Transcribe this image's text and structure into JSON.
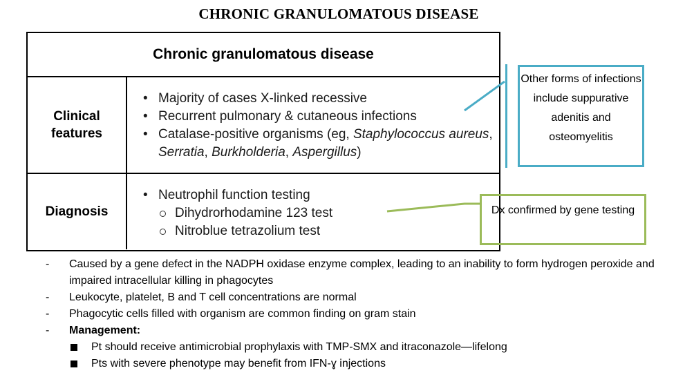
{
  "page_title": "CHRONIC GRANULOMATOUS DISEASE",
  "table": {
    "header": "Chronic granulomatous disease",
    "clinical": {
      "label_line1": "Clinical",
      "label_line2": "features",
      "items": [
        "Majority of cases X-linked recessive",
        "Recurrent pulmonary & cutaneous infections"
      ],
      "catalase_prefix": "Catalase-positive organisms (eg, ",
      "catalase_organisms": "Staphylococcus aureus",
      "catalase_sep1": ", ",
      "org2": "Serratia",
      "org3": "Burkholderia",
      "org4": "Aspergillus",
      "catalase_suffix": ")"
    },
    "diagnosis": {
      "label": "Diagnosis",
      "item": "Neutrophil function testing",
      "sub_items": [
        "Dihydrorhodamine 123 test",
        "Nitroblue tetrazolium test"
      ]
    }
  },
  "callouts": {
    "blue": "Other forms of infections include suppurative adenitis and osteomyelitis",
    "green": "Dx confirmed by gene testing"
  },
  "notes": {
    "dash": "-",
    "items": [
      "Caused by a gene defect in the NADPH oxidase enzyme complex, leading to an inability to form hydrogen peroxide and impaired intracellular killing in phagocytes",
      "Leukocyte, platelet, B and T cell concentrations are normal",
      "Phagocytic cells filled with organism are common finding on gram stain"
    ],
    "management_label": "Management:",
    "management": [
      "Pt should receive antimicrobial prophylaxis with TMP-SMX and itraconazole—lifelong",
      "Pts with severe phenotype may benefit from IFN-ɣ injections"
    ]
  },
  "colors": {
    "blue": "#4aacc6",
    "green": "#9bbb59"
  }
}
